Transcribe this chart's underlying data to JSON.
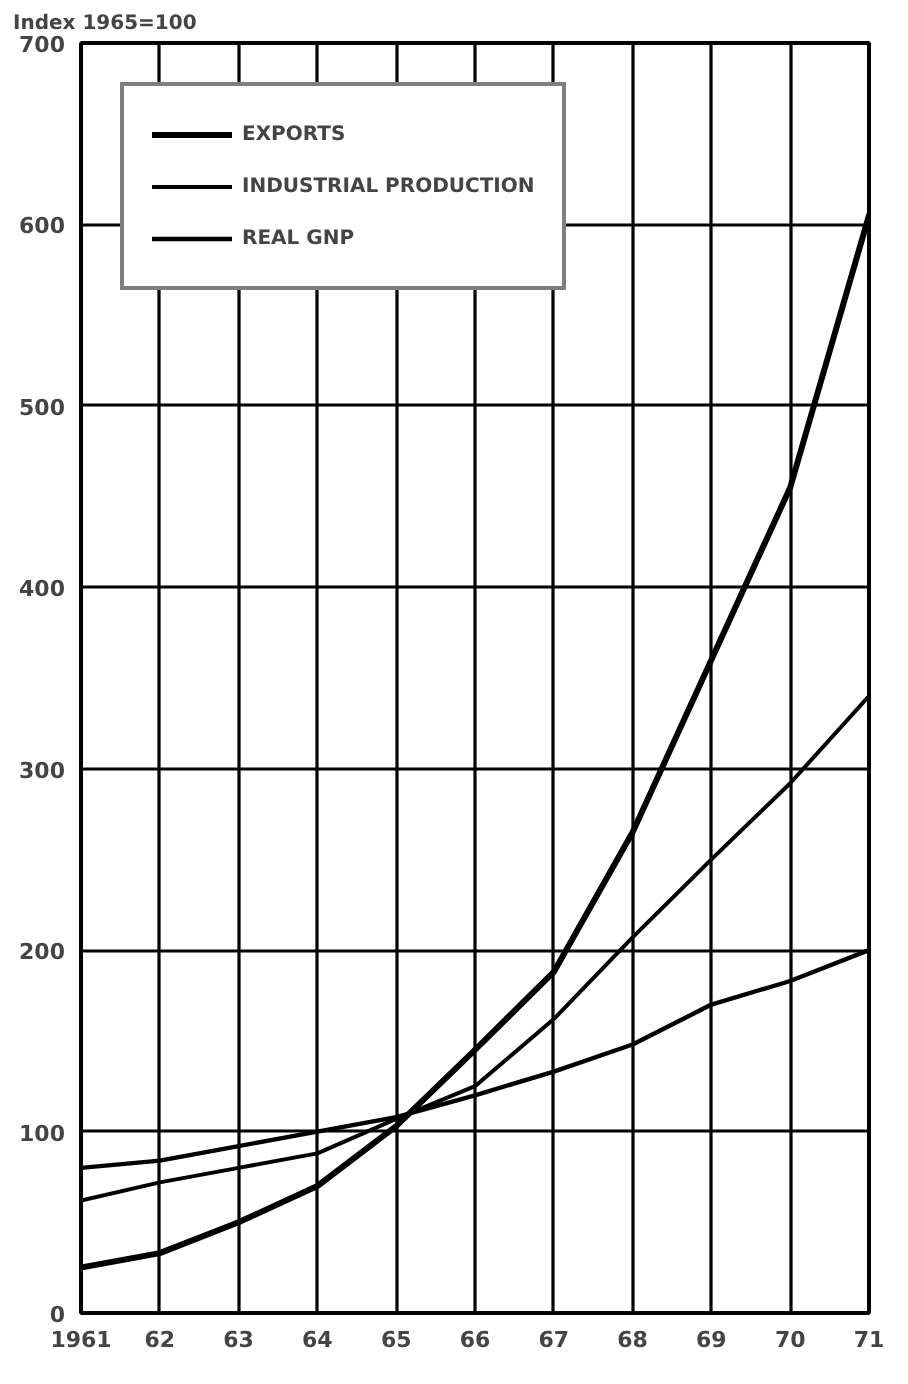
{
  "chart_data": {
    "type": "line",
    "ylabel": "Index 1965=100",
    "x": [
      1961,
      1962,
      1963,
      1964,
      1965,
      1966,
      1967,
      1968,
      1969,
      1970,
      1971
    ],
    "series": [
      {
        "name": "EXPORTS",
        "color": "#000000",
        "values": [
          25,
          33,
          50,
          70,
          103,
          145,
          188,
          265,
          360,
          455,
          605
        ]
      },
      {
        "name": "INDUSTRIAL PRODUCTION",
        "color": "#000000",
        "values": [
          62,
          72,
          80,
          88,
          107,
          125,
          162,
          207,
          250,
          292,
          340
        ]
      },
      {
        "name": "REAL GNP",
        "color": "#000000",
        "values": [
          80,
          84,
          92,
          100,
          108,
          120,
          133,
          148,
          170,
          183,
          200
        ]
      }
    ],
    "xlim": [
      1961,
      1971
    ],
    "xticks": [
      {
        "value": 1961,
        "label": "1961"
      },
      {
        "value": 1962,
        "label": "62"
      },
      {
        "value": 1963,
        "label": "63"
      },
      {
        "value": 1964,
        "label": "64"
      },
      {
        "value": 1965,
        "label": "65"
      },
      {
        "value": 1966,
        "label": "66"
      },
      {
        "value": 1967,
        "label": "67"
      },
      {
        "value": 1968,
        "label": "68"
      },
      {
        "value": 1969,
        "label": "69"
      },
      {
        "value": 1970,
        "label": "70"
      },
      {
        "value": 1971,
        "label": "71"
      }
    ],
    "ylim": [
      0,
      700
    ],
    "yticks": [
      0,
      100,
      200,
      300,
      400,
      500,
      600,
      700
    ],
    "grid": true,
    "legend": "top left",
    "line_style": "solid"
  }
}
